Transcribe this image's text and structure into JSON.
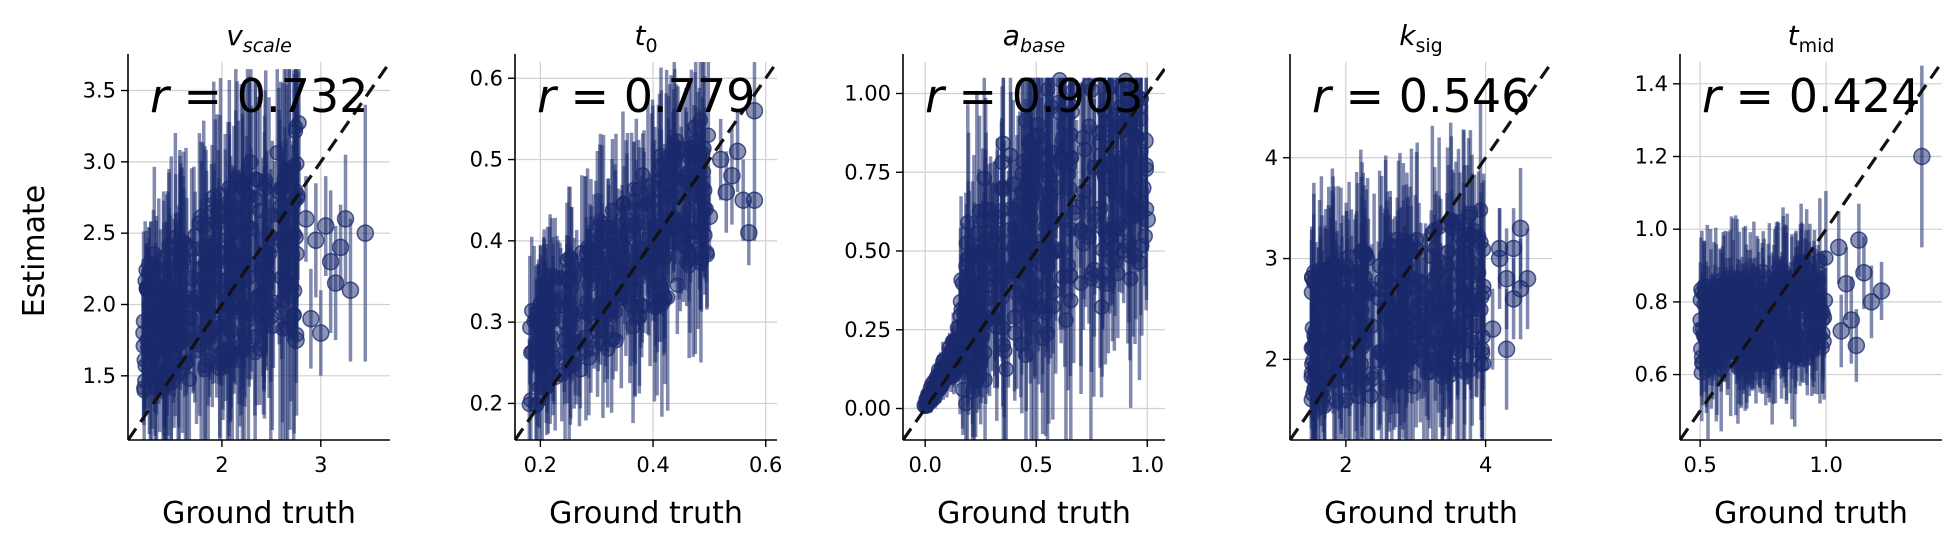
{
  "chart_data": [
    {
      "type": "scatter",
      "title": "v",
      "title_sub": "scale",
      "title_sub_italic": true,
      "xlabel": "Ground truth",
      "ylabel": "Estimate",
      "annotation": "r = 0.732",
      "xlim": [
        1.05,
        3.7
      ],
      "ylim": [
        1.05,
        3.7
      ],
      "xticks": [
        2,
        3
      ],
      "xtick_labels": [
        "2",
        "3"
      ],
      "yticks": [
        1.5,
        2.0,
        2.5,
        3.0,
        3.5
      ],
      "ytick_labels": [
        "1.5",
        "2.0",
        "2.5",
        "3.0",
        "3.5"
      ],
      "grid": true,
      "identity_line": true,
      "cloud": {
        "x_min": 1.2,
        "x_max": 2.8,
        "low_base": 1.35,
        "low_slope": 0.25,
        "high_base": 2.3,
        "high_slope": 0.65,
        "spread_top": 3.65,
        "n": 320
      },
      "points": [
        {
          "x": 2.85,
          "y": 2.6,
          "e": 0.3
        },
        {
          "x": 2.95,
          "y": 2.45,
          "e": 0.4
        },
        {
          "x": 3.05,
          "y": 2.55,
          "e": 0.35
        },
        {
          "x": 3.1,
          "y": 2.3,
          "e": 0.5
        },
        {
          "x": 3.15,
          "y": 2.15,
          "e": 0.4
        },
        {
          "x": 3.25,
          "y": 2.6,
          "e": 0.45
        },
        {
          "x": 3.3,
          "y": 2.1,
          "e": 0.5
        },
        {
          "x": 3.2,
          "y": 2.4,
          "e": 0.3
        },
        {
          "x": 3.45,
          "y": 2.5,
          "e": 0.9
        },
        {
          "x": 2.9,
          "y": 1.9,
          "e": 0.35
        },
        {
          "x": 2.75,
          "y": 1.75,
          "e": 0.3
        },
        {
          "x": 3.0,
          "y": 1.8,
          "e": 0.3
        }
      ]
    },
    {
      "type": "scatter",
      "title": "t",
      "title_sub": "0",
      "title_sub_italic": false,
      "xlabel": "Ground truth",
      "ylabel": "",
      "annotation": "r = 0.779",
      "xlim": [
        0.155,
        0.62
      ],
      "ylim": [
        0.155,
        0.62
      ],
      "xticks": [
        0.2,
        0.4,
        0.6
      ],
      "xtick_labels": [
        "0.2",
        "0.4",
        "0.6"
      ],
      "yticks": [
        0.2,
        0.3,
        0.4,
        0.5,
        0.6
      ],
      "ytick_labels": [
        "0.2",
        "0.3",
        "0.4",
        "0.5",
        "0.6"
      ],
      "grid": true,
      "identity_line": true,
      "cloud": {
        "x_min": 0.18,
        "x_max": 0.5,
        "low_base": 0.19,
        "low_slope": 0.55,
        "high_base": 0.33,
        "high_slope": 0.75,
        "spread_top": 0.62,
        "n": 320
      },
      "points": [
        {
          "x": 0.52,
          "y": 0.5,
          "e": 0.05
        },
        {
          "x": 0.54,
          "y": 0.48,
          "e": 0.06
        },
        {
          "x": 0.55,
          "y": 0.51,
          "e": 0.05
        },
        {
          "x": 0.56,
          "y": 0.45,
          "e": 0.05
        },
        {
          "x": 0.57,
          "y": 0.41,
          "e": 0.04
        },
        {
          "x": 0.58,
          "y": 0.56,
          "e": 0.06
        },
        {
          "x": 0.53,
          "y": 0.46,
          "e": 0.05
        },
        {
          "x": 0.5,
          "y": 0.43,
          "e": 0.05
        },
        {
          "x": 0.58,
          "y": 0.45,
          "e": 0.05
        }
      ]
    },
    {
      "type": "scatter",
      "title": "a",
      "title_sub": "base",
      "title_sub_italic": true,
      "xlabel": "Ground truth",
      "ylabel": "",
      "annotation": "r = 0.903",
      "xlim": [
        -0.1,
        1.08
      ],
      "ylim": [
        -0.1,
        1.1
      ],
      "xticks": [
        0.0,
        0.5,
        1.0
      ],
      "xtick_labels": [
        "0.0",
        "0.5",
        "1.0"
      ],
      "yticks": [
        0.0,
        0.25,
        0.5,
        0.75,
        1.0
      ],
      "ytick_labels": [
        "0.00",
        "0.25",
        "0.50",
        "0.75",
        "1.00"
      ],
      "grid": true,
      "identity_line": true,
      "cloud": {
        "x_min": 0.0,
        "x_max": 1.0,
        "low_base": 0.0,
        "low_slope": 0.55,
        "high_base": 0.15,
        "high_slope": 1.0,
        "spread_top": 1.05,
        "n": 420,
        "saturating": true
      },
      "points": [
        {
          "x": 0.0,
          "y": 0.01,
          "e": 0.01
        },
        {
          "x": 0.02,
          "y": 0.03,
          "e": 0.02
        },
        {
          "x": 0.04,
          "y": 0.05,
          "e": 0.02
        },
        {
          "x": 0.06,
          "y": 0.08,
          "e": 0.03
        },
        {
          "x": 0.09,
          "y": 0.12,
          "e": 0.04
        },
        {
          "x": 0.12,
          "y": 0.18,
          "e": 0.05
        },
        {
          "x": 0.15,
          "y": 0.22,
          "e": 0.06
        },
        {
          "x": 0.99,
          "y": 0.85,
          "e": 0.1
        },
        {
          "x": 0.98,
          "y": 0.7,
          "e": 0.12
        },
        {
          "x": 1.0,
          "y": 0.6,
          "e": 0.1
        }
      ]
    },
    {
      "type": "scatter",
      "title": "k",
      "title_sub": "sig",
      "title_sub_italic": false,
      "xlabel": "Ground truth",
      "ylabel": "",
      "annotation": "r = 0.546",
      "xlim": [
        1.2,
        4.95
      ],
      "ylim": [
        1.2,
        4.95
      ],
      "xticks": [
        2,
        4
      ],
      "xtick_labels": [
        "2",
        "4"
      ],
      "yticks": [
        2,
        3,
        4
      ],
      "ytick_labels": [
        "2",
        "3",
        "4"
      ],
      "grid": true,
      "identity_line": true,
      "cloud": {
        "x_min": 1.5,
        "x_max": 4.0,
        "low_base": 1.5,
        "low_slope": 0.15,
        "high_base": 2.9,
        "high_slope": 0.25,
        "spread_top": 4.9,
        "n": 360
      },
      "points": [
        {
          "x": 4.2,
          "y": 3.1,
          "e": 0.4
        },
        {
          "x": 4.3,
          "y": 2.8,
          "e": 0.5
        },
        {
          "x": 4.4,
          "y": 2.6,
          "e": 0.4
        },
        {
          "x": 4.5,
          "y": 3.3,
          "e": 0.6
        },
        {
          "x": 4.6,
          "y": 2.8,
          "e": 0.5
        },
        {
          "x": 4.5,
          "y": 2.7,
          "e": 0.5
        },
        {
          "x": 4.3,
          "y": 2.1,
          "e": 0.6
        },
        {
          "x": 4.1,
          "y": 2.3,
          "e": 0.4
        },
        {
          "x": 4.2,
          "y": 3.0,
          "e": 0.5
        },
        {
          "x": 4.4,
          "y": 3.1,
          "e": 0.4
        }
      ]
    },
    {
      "type": "scatter",
      "title": "t",
      "title_sub": "mid",
      "title_sub_italic": false,
      "xlabel": "Ground truth",
      "ylabel": "",
      "annotation": "r = 0.424",
      "xlim": [
        0.42,
        1.46
      ],
      "ylim": [
        0.42,
        1.46
      ],
      "xticks": [
        0.5,
        1.0
      ],
      "xtick_labels": [
        "0.5",
        "1.0"
      ],
      "yticks": [
        0.6,
        0.8,
        1.0,
        1.2,
        1.4
      ],
      "ytick_labels": [
        "0.6",
        "0.8",
        "1.0",
        "1.2",
        "1.4"
      ],
      "grid": true,
      "identity_line": true,
      "cloud": {
        "x_min": 0.5,
        "x_max": 1.0,
        "low_base": 0.6,
        "low_slope": 0.1,
        "high_base": 0.85,
        "high_slope": 0.15,
        "spread_top": 1.42,
        "n": 320
      },
      "points": [
        {
          "x": 1.05,
          "y": 0.95,
          "e": 0.1
        },
        {
          "x": 1.08,
          "y": 0.85,
          "e": 0.1
        },
        {
          "x": 1.1,
          "y": 0.75,
          "e": 0.12
        },
        {
          "x": 1.13,
          "y": 0.97,
          "e": 0.1
        },
        {
          "x": 1.15,
          "y": 0.88,
          "e": 0.1
        },
        {
          "x": 1.18,
          "y": 0.8,
          "e": 0.1
        },
        {
          "x": 1.22,
          "y": 0.83,
          "e": 0.08
        },
        {
          "x": 1.12,
          "y": 0.68,
          "e": 0.1
        },
        {
          "x": 1.06,
          "y": 0.72,
          "e": 0.1
        },
        {
          "x": 1.38,
          "y": 1.2,
          "e": 0.25
        }
      ]
    }
  ]
}
